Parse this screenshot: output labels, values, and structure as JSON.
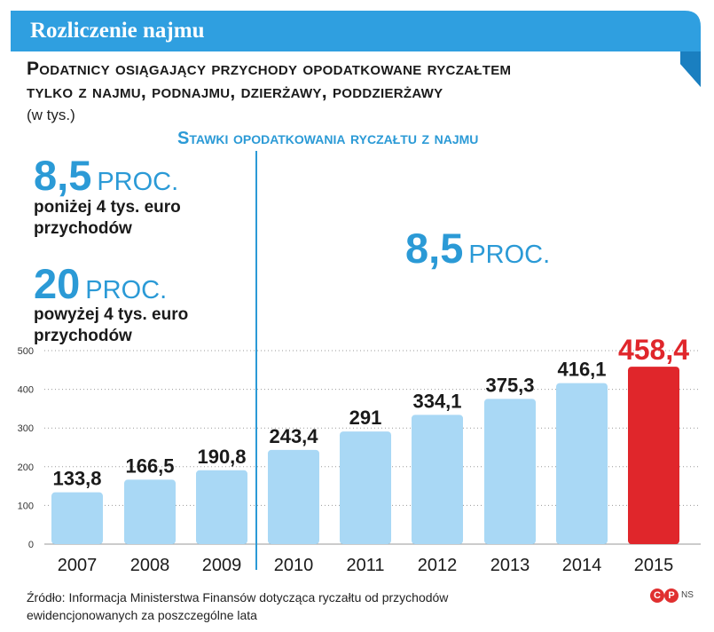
{
  "header": {
    "banner_title": "Rozliczenie najmu",
    "subtitle_line1": "Podatnicy osiągający przychody opodatkowane ryczałtem",
    "subtitle_line2": "tylko z najmu, podnajmu, dzierżawy, poddzierżawy",
    "unit": "(w tys.)"
  },
  "rates": {
    "heading": "Stawki opodatkowania ryczałtu z najmu",
    "before_2010": [
      {
        "rate": "8,5",
        "word": "PROC.",
        "note_line1": "poniżej 4 tys. euro",
        "note_line2": "przychodów"
      },
      {
        "rate": "20",
        "word": "PROC.",
        "note_line1": "powyżej 4 tys. euro",
        "note_line2": "przychodów"
      }
    ],
    "from_2010": {
      "rate": "8,5",
      "word": "PROC."
    }
  },
  "chart_data": {
    "type": "bar",
    "categories": [
      "2007",
      "2008",
      "2009",
      "2010",
      "2011",
      "2012",
      "2013",
      "2014",
      "2015"
    ],
    "values": [
      133.8,
      166.5,
      190.8,
      243.4,
      291,
      334.1,
      375.3,
      416.1,
      458.4
    ],
    "value_labels": [
      "133,8",
      "166,5",
      "190,8",
      "243,4",
      "291",
      "334,1",
      "375,3",
      "416,1",
      "458,4"
    ],
    "y_ticks": [
      "0",
      "100",
      "200",
      "300",
      "400",
      "500"
    ],
    "ylim": [
      0,
      500
    ],
    "highlight_index": 8,
    "colors": {
      "bar": "#a9d8f5",
      "highlight": "#e0262b",
      "label": "#1a1a1a",
      "highlight_label": "#e0262b",
      "divider": "#2b9ad6"
    }
  },
  "footer": {
    "source_line1": "Źródło: Informacja Ministerstwa Finansów dotycząca ryczałtu od przychodów",
    "source_line2": "ewidencjonowanych za poszczególne lata",
    "logo_c": "C",
    "logo_p": "P",
    "logo_ns": "NS"
  },
  "colors": {
    "brand_blue": "#2b9ad6",
    "banner_blue": "#2f9fe0"
  }
}
